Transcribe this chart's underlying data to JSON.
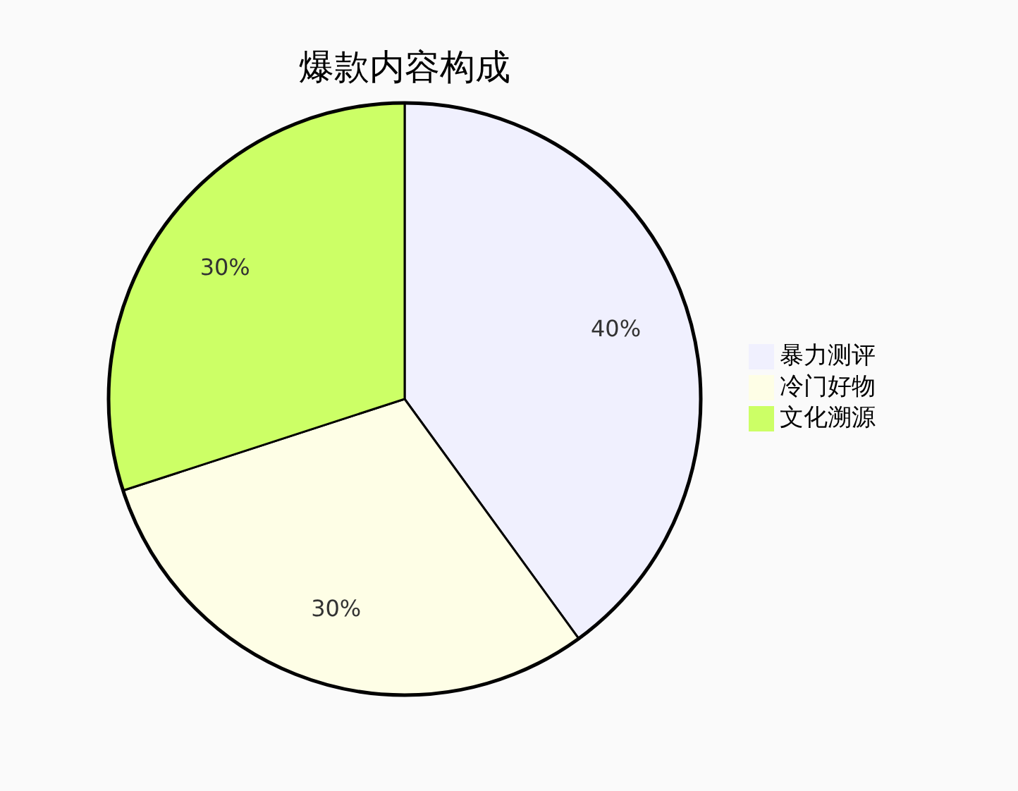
{
  "chart_data": {
    "type": "pie",
    "title": "爆款内容构成",
    "categories": [
      "暴力测评",
      "冷门好物",
      "文化溯源"
    ],
    "values": [
      40,
      30,
      30
    ],
    "colors": [
      "#f0f0fe",
      "#fefee6",
      "#ccff66"
    ],
    "value_labels": [
      "40%",
      "30%",
      "30%"
    ],
    "legend": "right"
  }
}
